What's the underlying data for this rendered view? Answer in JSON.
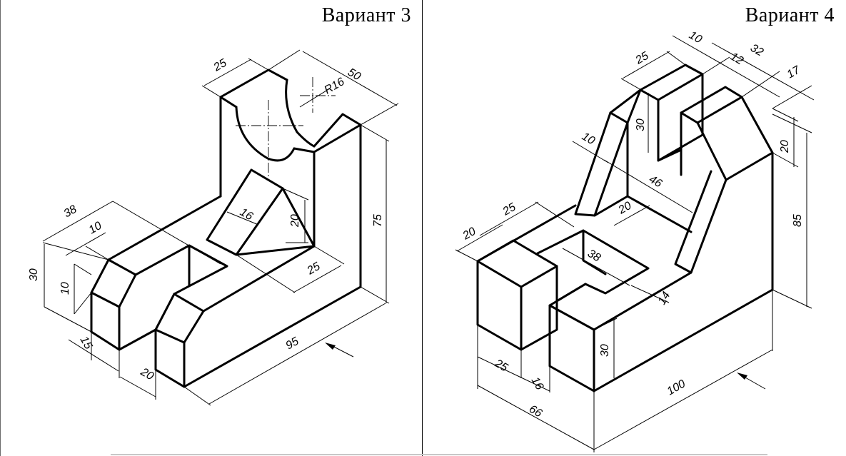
{
  "variants": {
    "left": {
      "title": "Вариант 3"
    },
    "right": {
      "title": "Вариант 4"
    }
  },
  "left_dims": {
    "d25": "25",
    "d50": "50",
    "r16": "R16",
    "d38": "38",
    "d10a": "10",
    "d30": "30",
    "d10b": "10",
    "d16": "16",
    "d20v": "20",
    "d75": "75",
    "d25b": "25",
    "d95": "95",
    "d15": "15",
    "d20b": "20"
  },
  "right_dims": {
    "d10": "10",
    "d25": "25",
    "d12": "12",
    "d32": "32",
    "d17": "17",
    "d30a": "30",
    "d20a": "20",
    "d10b": "10",
    "d46": "46",
    "d20b": "20",
    "d85": "85",
    "d20c": "20",
    "d25b": "25",
    "d38": "38",
    "d14": "14",
    "d30b": "30",
    "d25c": "25",
    "d16": "16",
    "d66": "66",
    "d100": "100"
  }
}
